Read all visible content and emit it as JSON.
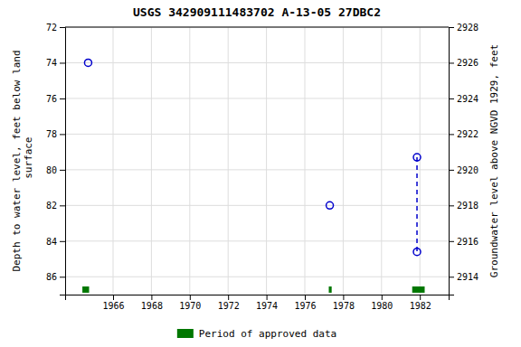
{
  "chart_data": {
    "type": "scatter",
    "title": "USGS 342909111483702 A-13-05 27DBC2",
    "ylabel": "Depth to water level, feet below land\n surface",
    "y2label": "Groundwater level above NGVD 1929, feet",
    "xlim": [
      1963.5,
      1983.5
    ],
    "xticks": [
      1966,
      1968,
      1970,
      1972,
      1974,
      1976,
      1978,
      1980,
      1982
    ],
    "ylim": [
      87,
      72
    ],
    "yticks": [
      72,
      74,
      76,
      78,
      80,
      82,
      84,
      86
    ],
    "y2lim": [
      2913,
      2928
    ],
    "y2ticks": [
      2928,
      2926,
      2924,
      2922,
      2920,
      2918,
      2916,
      2914
    ],
    "grid": true,
    "legend": "bottom",
    "series": [
      {
        "type": "scatter",
        "marker": "open-circle",
        "color": "#0000cc",
        "x": [
          1964.7,
          1977.3,
          1981.85,
          1981.85
        ],
        "values": [
          74.0,
          82.0,
          79.3,
          84.6
        ]
      },
      {
        "type": "line",
        "line_style": "dashed",
        "color": "#0000cc",
        "x": [
          1981.85,
          1981.85
        ],
        "values": [
          79.3,
          84.6
        ]
      },
      {
        "type": "bar",
        "orientation": "horizontal",
        "name": "Period of approved data",
        "color": "#007700",
        "x": [
          1964.4,
          1977.25,
          1981.6
        ],
        "widths": [
          0.35,
          0.15,
          0.65
        ],
        "y": 86.72,
        "height": 0.35
      }
    ]
  }
}
